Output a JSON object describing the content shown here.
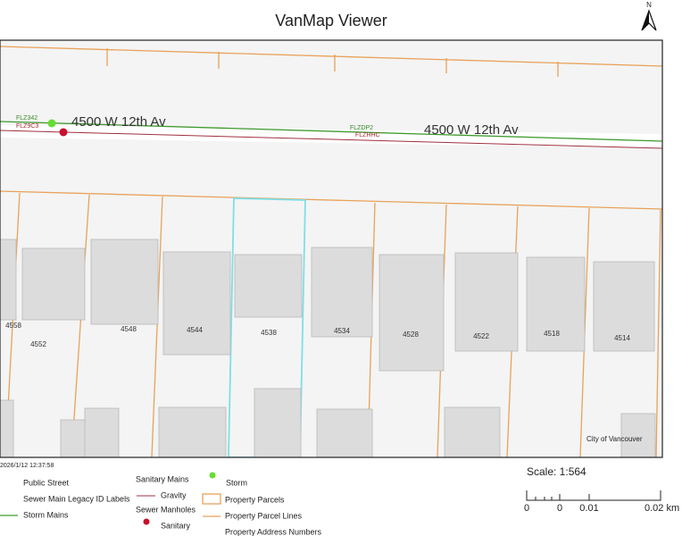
{
  "header": {
    "title": "VanMap Viewer",
    "north": "N"
  },
  "map": {
    "street_labels": [
      "4500 W 12th Av",
      "4500 W 12th Av"
    ],
    "pipe_labels": [
      "FLZ342",
      "FLZ9C3",
      "FLZDP2",
      "FLZHHC"
    ],
    "address_numbers": [
      "4558",
      "4552",
      "4548",
      "4544",
      "4538",
      "4534",
      "4528",
      "4522",
      "4518",
      "4514"
    ],
    "credit": "City of Vancouver"
  },
  "footer": {
    "timestamp": "2026/1/12 12:37:58",
    "legend": [
      "Public Street",
      "Sewer Main Legacy ID Labels",
      "Storm Mains",
      "Sanitary Mains",
      "Gravity",
      "Sewer Manholes",
      "Sanitary",
      "Storm",
      "Property Parcels",
      "Property Parcel Lines",
      "Property Address Numbers"
    ],
    "scale": "Scale: 1:564",
    "scale_bar_labels": [
      "0",
      "0",
      "0.01",
      "0.02 km"
    ]
  }
}
